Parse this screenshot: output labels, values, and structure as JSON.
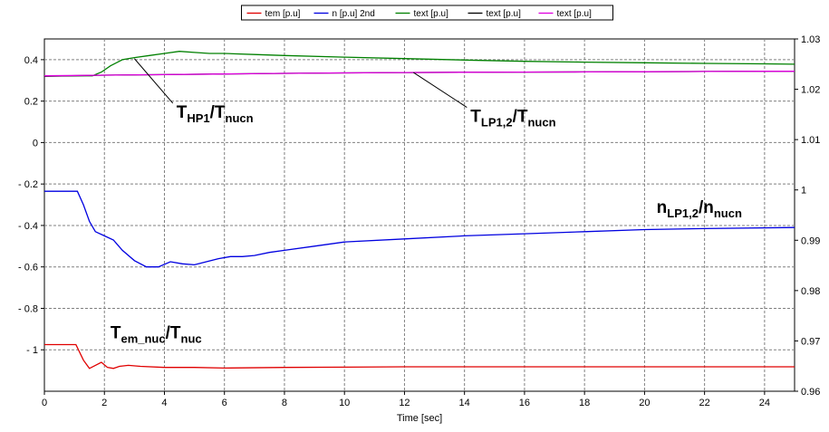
{
  "chart_data": {
    "type": "line",
    "xlabel": "Time [sec]",
    "xlim": [
      0,
      25
    ],
    "x_ticks": [
      0,
      2,
      4,
      6,
      8,
      10,
      12,
      14,
      16,
      18,
      20,
      22,
      24
    ],
    "ylim_left": [
      -1.2,
      0.5
    ],
    "left_ticks": [
      {
        "v": 0.4,
        "t": "0.4"
      },
      {
        "v": 0.2,
        "t": "0.2"
      },
      {
        "v": 0,
        "t": "0"
      },
      {
        "v": -0.2,
        "t": "- 0.2"
      },
      {
        "v": -0.4,
        "t": "- 0.4"
      },
      {
        "v": -0.6,
        "t": "- 0.6"
      },
      {
        "v": -0.8,
        "t": "- 0.8"
      },
      {
        "v": -1,
        "t": "- 1"
      }
    ],
    "ylim_right": [
      0.96,
      1.03
    ],
    "right_ticks": [
      {
        "v": 1.03,
        "t": "1.03"
      },
      {
        "v": 1.02,
        "t": "1.02"
      },
      {
        "v": 1.01,
        "t": "1.01"
      },
      {
        "v": 1.0,
        "t": "1"
      },
      {
        "v": 0.99,
        "t": "0.99"
      },
      {
        "v": 0.98,
        "t": "0.98"
      },
      {
        "v": 0.97,
        "t": "0.97"
      },
      {
        "v": 0.96,
        "t": "0.96"
      }
    ],
    "grid": true,
    "legend": [
      "tem [p.u]",
      "n [p.u] 2nd",
      "text [p.u]",
      "text [p.u]",
      "text [p.u]"
    ],
    "legend_placement": "top-center",
    "series": [
      {
        "color": "#e00000",
        "axis": "left",
        "x": [
          0,
          1.05,
          1.3,
          1.5,
          1.7,
          1.9,
          2.1,
          2.3,
          2.5,
          2.8,
          3.2,
          4,
          5,
          6,
          8,
          12,
          16,
          20,
          25
        ],
        "y": [
          -0.975,
          -0.975,
          -1.05,
          -1.09,
          -1.075,
          -1.06,
          -1.085,
          -1.09,
          -1.08,
          -1.075,
          -1.08,
          -1.085,
          -1.085,
          -1.088,
          -1.085,
          -1.082,
          -1.082,
          -1.082,
          -1.082
        ]
      },
      {
        "color": "#0000e0",
        "axis": "left",
        "x": [
          0,
          1.1,
          1.3,
          1.5,
          1.7,
          2.0,
          2.3,
          2.6,
          3.0,
          3.4,
          3.8,
          4.2,
          4.6,
          5.0,
          5.4,
          5.8,
          6.2,
          6.6,
          7.0,
          7.5,
          8,
          9,
          10,
          12,
          14,
          16,
          18,
          20,
          22,
          25
        ],
        "y": [
          -0.235,
          -0.235,
          -0.3,
          -0.38,
          -0.43,
          -0.45,
          -0.47,
          -0.52,
          -0.57,
          -0.6,
          -0.6,
          -0.575,
          -0.585,
          -0.59,
          -0.575,
          -0.56,
          -0.55,
          -0.55,
          -0.545,
          -0.53,
          -0.52,
          -0.5,
          -0.48,
          -0.465,
          -0.45,
          -0.44,
          -0.43,
          -0.42,
          -0.415,
          -0.41
        ]
      },
      {
        "color": "#008000",
        "axis": "left",
        "x": [
          0,
          1.6,
          1.9,
          2.2,
          2.6,
          3.0,
          3.5,
          4.0,
          4.5,
          5.0,
          5.5,
          6,
          7,
          8,
          10,
          12,
          14,
          16,
          18,
          20,
          22,
          24,
          25
        ],
        "y": [
          0.322,
          0.322,
          0.34,
          0.37,
          0.4,
          0.41,
          0.42,
          0.43,
          0.44,
          0.435,
          0.43,
          0.43,
          0.425,
          0.42,
          0.412,
          0.405,
          0.398,
          0.392,
          0.388,
          0.385,
          0.382,
          0.38,
          0.378
        ]
      },
      {
        "color": "#000000",
        "axis": "left",
        "x": [
          0,
          2,
          4,
          6,
          8,
          10,
          12,
          14,
          16,
          18,
          20,
          22,
          24,
          25
        ],
        "y": [
          0.32,
          0.325,
          0.328,
          0.331,
          0.334,
          0.336,
          0.338,
          0.339,
          0.34,
          0.341,
          0.342,
          0.343,
          0.344,
          0.344
        ]
      },
      {
        "color": "#e000e0",
        "axis": "left",
        "x": [
          0,
          2,
          4,
          6,
          8,
          10,
          12,
          14,
          16,
          18,
          20,
          22,
          24,
          25
        ],
        "y": [
          0.322,
          0.325,
          0.328,
          0.331,
          0.334,
          0.336,
          0.338,
          0.339,
          0.34,
          0.341,
          0.342,
          0.343,
          0.344,
          0.344
        ]
      }
    ],
    "annotations": [
      {
        "main": "T",
        "sub": "HP1",
        "main2": "/T",
        "sub2": "nucn",
        "x": 4.4,
        "y": 0.12,
        "arrow_to": [
          3.0,
          0.405
        ]
      },
      {
        "main": "T",
        "sub": "LP1,2",
        "main2": "/T",
        "sub2": "nucn",
        "x": 14.2,
        "y": 0.1,
        "arrow_to": [
          12.3,
          0.338
        ]
      },
      {
        "main": "n",
        "sub": "LP1,2",
        "main2": "/n",
        "sub2": "nucn",
        "x": 20.4,
        "y": -0.34
      },
      {
        "main": "T",
        "sub": "em_nuc",
        "main2": "/T",
        "sub2": "nuc",
        "x": 2.2,
        "y": -0.945
      }
    ]
  }
}
